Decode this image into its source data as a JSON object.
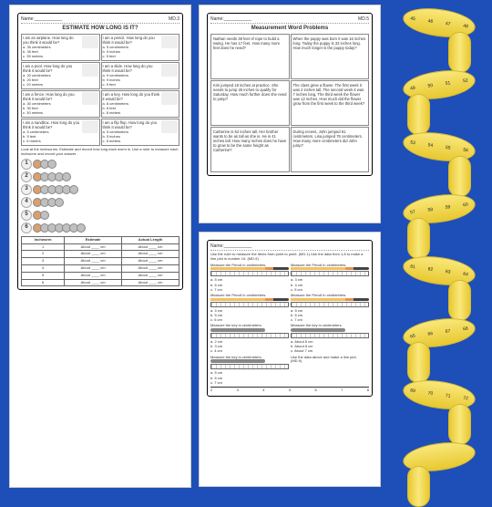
{
  "colors": {
    "bg": "#1e4fb8",
    "tape": "#f5d94a",
    "tape_dark": "#d4b830"
  },
  "page1": {
    "name_label": "Name:___________",
    "code": "MD.3",
    "title": "ESTIMATE HOW LONG IS IT?",
    "cells": [
      {
        "q": "I am an airplane. How long do you think it would be?",
        "opts": "a. 35 centimeters\nb. 35 feet\nc. 35 meters"
      },
      {
        "q": "I am a pencil. How long do you think it would be?",
        "opts": "a. 5 centimeters\nb. 5 inches\nc. 5 feet"
      },
      {
        "q": "I am a pool. How long do you think it would be?",
        "opts": "a. 20 centimeters\nb. 20 feet\nc. 20 meters"
      },
      {
        "q": "I am a slide. How long do you think it would be?",
        "opts": "a. 9 centimeters\nb. 9 inches\nc. 9 feet"
      },
      {
        "q": "I am a fence. How long do you think it would be?",
        "opts": "a. 30 centimeters\nb. 30 feet\nc. 30 meters"
      },
      {
        "q": "I am a key. How long do you think it would be?",
        "opts": "a. 8 centimeters\nb. 8 feet\nc. 8 meters"
      },
      {
        "q": "I am a sandbox. How long do you think it would be?",
        "opts": "a. 5 centimeters\nb. 5 feet\nc. 5 meters"
      },
      {
        "q": "I am a flip flop. How long do you think it would be?",
        "opts": "a. 5 centimeters\nb. 5 inches\nc. 5 meters"
      }
    ],
    "instruction": "Look at the inchworms. Estimate and record how long each worm is. Use a ruler to measure each inchworm and record your answer.",
    "caterpillars": [
      {
        "n": "1",
        "segments": 3
      },
      {
        "n": "2",
        "segments": 5
      },
      {
        "n": "3",
        "segments": 6
      },
      {
        "n": "4",
        "segments": 4
      },
      {
        "n": "5",
        "segments": 2
      },
      {
        "n": "6",
        "segments": 7
      }
    ],
    "table": {
      "headers": [
        "Inchworm",
        "Estimate",
        "Actual Length"
      ],
      "rows": [
        [
          "1",
          "About ____ cm",
          "About ____ cm"
        ],
        [
          "2",
          "About ____ cm",
          "About ____ cm"
        ],
        [
          "3",
          "About ____ cm",
          "About ____ cm"
        ],
        [
          "4",
          "About ____ cm",
          "About ____ cm"
        ],
        [
          "5",
          "About ____ cm",
          "About ____ cm"
        ],
        [
          "6",
          "About ____ cm",
          "About ____ cm"
        ]
      ]
    }
  },
  "page2": {
    "name_label": "Name:___________",
    "code": "MD.5",
    "title": "Measurement Word Problems",
    "problems": [
      "Nathan needs 38 feet of rope to build a swing. He has 17 feet. How many more feet does he need?",
      "When the puppy was born it was 16 inches long. Today the puppy is 33 inches long. How much longer is the puppy today?",
      "Kim jumped 18 inches at practice. She needs to jump 26 inches to qualify for Saturday. How much further does she need to jump?",
      "The class grew a flower. The first week it was 2 inches tall. The second week it was 7 inches long. The third week the flower was 12 inches. How much did the flower grow from the first week to the third week?",
      "Catherine is 52 inches tall. Her brother wants to be as tall as she is. He is 41 inches tall. How many inches does he have to grow to be the same height as Catherine?",
      "During recess, John jumped 91 centimeters. Lisa jumped 76 centimeters. How many more centimeters did John jump?"
    ]
  },
  "page3": {
    "name_label": "Name:___________",
    "instruction": "Use the ruler to measure the items from point to point. (MD.1) Use the data from 1-8 to make a line plot in number 10. (MD.9)",
    "items": [
      {
        "title": "Measure the Pencil in centimeters.",
        "opts": "a. 5 cm\nb. 6 cm\nc. 7 cm"
      },
      {
        "title": "Measure the Pencil in centimeters.",
        "opts": "a. 3 cm\nb. 4 cm\nc. 5 cm"
      },
      {
        "title": "Measure the Pencil in centimeters.",
        "opts": "a. 4 cm\nb. 5 cm\nc. 6 cm"
      },
      {
        "title": "Measure the Pencil in centimeters.",
        "opts": "a. 5 cm\nb. 6 cm\nc. 7 cm"
      },
      {
        "title": "Measure the key in centimeters.",
        "opts": "a. 2 cm\nb. 3 cm\nc. 4 cm"
      },
      {
        "title": "Measure the key in centimeters.",
        "opts": "a. About 6 cm\nb. About 8 cm\nc. About 7 cm"
      },
      {
        "title": "Measure the key in centimeters.",
        "opts": "a. 5 cm\nb. 6 cm\nc. 7 cm"
      },
      {
        "title": "Use the data above and make a line plot. (MD.9)",
        "opts": ""
      }
    ],
    "axis": [
      "2",
      "3",
      "4",
      "5",
      "6",
      "7",
      "8"
    ]
  },
  "tape_numbers": [
    "45",
    "46",
    "47",
    "48",
    "49",
    "50",
    "51",
    "52",
    "53",
    "54",
    "55",
    "56",
    "57",
    "58",
    "59",
    "60",
    "61",
    "62",
    "63",
    "64",
    "65",
    "66",
    "67",
    "68",
    "69",
    "70",
    "71",
    "72"
  ]
}
